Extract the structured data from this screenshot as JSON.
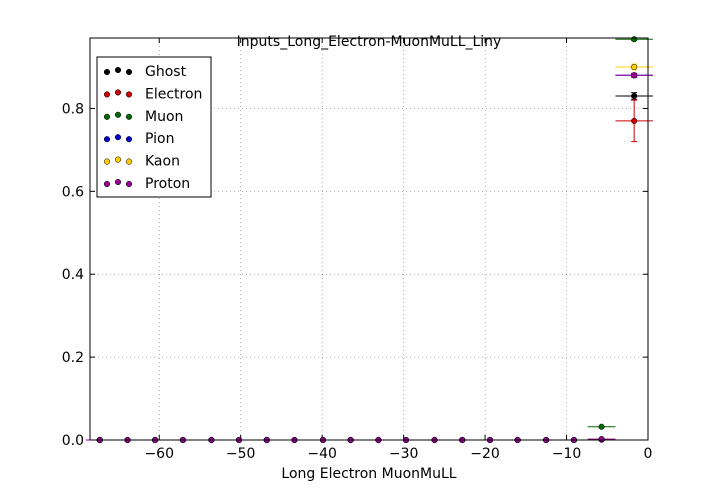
{
  "chart_data": {
    "type": "scatter",
    "title": "Inputs_Long_Electron-MuonMuLL_Liny",
    "xlabel": "Long Electron MuonMuLL",
    "ylabel": "",
    "xlim": [
      -68.5,
      0
    ],
    "ylim": [
      0,
      0.97
    ],
    "xticks": [
      -60,
      -50,
      -40,
      -30,
      -20,
      -10,
      0
    ],
    "xtick_labels": [
      "−60",
      "−50",
      "−40",
      "−30",
      "−20",
      "−10",
      "0"
    ],
    "yticks": [
      0,
      0.2,
      0.4,
      0.6,
      0.8
    ],
    "ytick_labels": [
      "0.0",
      "0.2",
      "0.4",
      "0.6",
      "0.8"
    ],
    "grid": true,
    "legend_position": "top-left",
    "series": [
      {
        "name": "Ghost",
        "color": "#000000",
        "x": [
          -67.3,
          -63.9,
          -60.5,
          -57.1,
          -53.6,
          -50.2,
          -46.8,
          -43.4,
          -39.9,
          -36.5,
          -33.1,
          -29.7,
          -26.2,
          -22.8,
          -19.4,
          -16.0,
          -12.5,
          -9.1,
          -5.7,
          -1.7
        ],
        "y": [
          0,
          0,
          0,
          0,
          0,
          0,
          0,
          0,
          0,
          0,
          0,
          0,
          0,
          0,
          0,
          0,
          0,
          0,
          0.001,
          0.83
        ],
        "xerr": [
          1.7,
          1.7,
          1.7,
          1.7,
          1.7,
          1.7,
          1.7,
          1.7,
          1.7,
          1.7,
          1.7,
          1.7,
          1.7,
          1.7,
          1.7,
          1.7,
          1.7,
          1.7,
          1.7,
          2.3
        ],
        "yerr": [
          0,
          0,
          0,
          0,
          0,
          0,
          0,
          0,
          0,
          0,
          0,
          0,
          0,
          0,
          0,
          0,
          0,
          0,
          0,
          0.008
        ]
      },
      {
        "name": "Electron",
        "color": "#cc0000",
        "x": [
          -67.3,
          -63.9,
          -60.5,
          -57.1,
          -53.6,
          -50.2,
          -46.8,
          -43.4,
          -39.9,
          -36.5,
          -33.1,
          -29.7,
          -26.2,
          -22.8,
          -19.4,
          -16.0,
          -12.5,
          -9.1,
          -5.7,
          -1.7
        ],
        "y": [
          0,
          0,
          0,
          0,
          0,
          0,
          0,
          0,
          0,
          0,
          0,
          0,
          0,
          0,
          0,
          0,
          0,
          0,
          0.001,
          0.77
        ],
        "xerr": [
          1.7,
          1.7,
          1.7,
          1.7,
          1.7,
          1.7,
          1.7,
          1.7,
          1.7,
          1.7,
          1.7,
          1.7,
          1.7,
          1.7,
          1.7,
          1.7,
          1.7,
          1.7,
          1.7,
          2.3
        ],
        "yerr": [
          0,
          0,
          0,
          0,
          0,
          0,
          0,
          0,
          0,
          0,
          0,
          0,
          0,
          0,
          0,
          0,
          0,
          0,
          0,
          0.05
        ]
      },
      {
        "name": "Muon",
        "color": "#006600",
        "x": [
          -67.3,
          -63.9,
          -60.5,
          -57.1,
          -53.6,
          -50.2,
          -46.8,
          -43.4,
          -39.9,
          -36.5,
          -33.1,
          -29.7,
          -26.2,
          -22.8,
          -19.4,
          -16.0,
          -12.5,
          -9.1,
          -5.7,
          -1.7
        ],
        "y": [
          0,
          0,
          0,
          0,
          0,
          0,
          0,
          0,
          0,
          0,
          0,
          0,
          0,
          0,
          0,
          0,
          0,
          0,
          0.032,
          0.967
        ],
        "xerr": [
          1.7,
          1.7,
          1.7,
          1.7,
          1.7,
          1.7,
          1.7,
          1.7,
          1.7,
          1.7,
          1.7,
          1.7,
          1.7,
          1.7,
          1.7,
          1.7,
          1.7,
          1.7,
          1.7,
          2.3
        ],
        "yerr": [
          0,
          0,
          0,
          0,
          0,
          0,
          0,
          0,
          0,
          0,
          0,
          0,
          0,
          0,
          0,
          0,
          0,
          0,
          0,
          0.003
        ]
      },
      {
        "name": "Pion",
        "color": "#0000cc",
        "x": [
          -67.3,
          -63.9,
          -60.5,
          -57.1,
          -53.6,
          -50.2,
          -46.8,
          -43.4,
          -39.9,
          -36.5,
          -33.1,
          -29.7,
          -26.2,
          -22.8,
          -19.4,
          -16.0,
          -12.5,
          -9.1,
          -5.7,
          -1.7
        ],
        "y": [
          0,
          0,
          0,
          0,
          0,
          0,
          0,
          0,
          0,
          0,
          0,
          0,
          0,
          0,
          0,
          0,
          0,
          0,
          0.001,
          0.88
        ],
        "xerr": [
          1.7,
          1.7,
          1.7,
          1.7,
          1.7,
          1.7,
          1.7,
          1.7,
          1.7,
          1.7,
          1.7,
          1.7,
          1.7,
          1.7,
          1.7,
          1.7,
          1.7,
          1.7,
          1.7,
          2.3
        ],
        "yerr": [
          0,
          0,
          0,
          0,
          0,
          0,
          0,
          0,
          0,
          0,
          0,
          0,
          0,
          0,
          0,
          0,
          0,
          0,
          0,
          0.004
        ]
      },
      {
        "name": "Kaon",
        "color": "#ffcc00",
        "x": [
          -67.3,
          -63.9,
          -60.5,
          -57.1,
          -53.6,
          -50.2,
          -46.8,
          -43.4,
          -39.9,
          -36.5,
          -33.1,
          -29.7,
          -26.2,
          -22.8,
          -19.4,
          -16.0,
          -12.5,
          -9.1,
          -5.7,
          -1.7
        ],
        "y": [
          0,
          0,
          0,
          0,
          0,
          0,
          0,
          0,
          0,
          0,
          0,
          0,
          0,
          0,
          0,
          0,
          0,
          0,
          0.002,
          0.9
        ],
        "xerr": [
          1.7,
          1.7,
          1.7,
          1.7,
          1.7,
          1.7,
          1.7,
          1.7,
          1.7,
          1.7,
          1.7,
          1.7,
          1.7,
          1.7,
          1.7,
          1.7,
          1.7,
          1.7,
          1.7,
          2.3
        ],
        "yerr": [
          0,
          0,
          0,
          0,
          0,
          0,
          0,
          0,
          0,
          0,
          0,
          0,
          0,
          0,
          0,
          0,
          0,
          0,
          0,
          0.007
        ]
      },
      {
        "name": "Proton",
        "color": "#990099",
        "x": [
          -67.3,
          -63.9,
          -60.5,
          -57.1,
          -53.6,
          -50.2,
          -46.8,
          -43.4,
          -39.9,
          -36.5,
          -33.1,
          -29.7,
          -26.2,
          -22.8,
          -19.4,
          -16.0,
          -12.5,
          -9.1,
          -5.7,
          -1.7
        ],
        "y": [
          0,
          0,
          0,
          0,
          0,
          0,
          0,
          0,
          0,
          0,
          0,
          0,
          0,
          0,
          0,
          0,
          0,
          0,
          0.002,
          0.88
        ],
        "xerr": [
          1.7,
          1.7,
          1.7,
          1.7,
          1.7,
          1.7,
          1.7,
          1.7,
          1.7,
          1.7,
          1.7,
          1.7,
          1.7,
          1.7,
          1.7,
          1.7,
          1.7,
          1.7,
          1.7,
          2.3
        ],
        "yerr": [
          0,
          0,
          0,
          0,
          0,
          0,
          0,
          0,
          0,
          0,
          0,
          0,
          0,
          0,
          0,
          0,
          0,
          0,
          0,
          0.005
        ]
      }
    ]
  }
}
